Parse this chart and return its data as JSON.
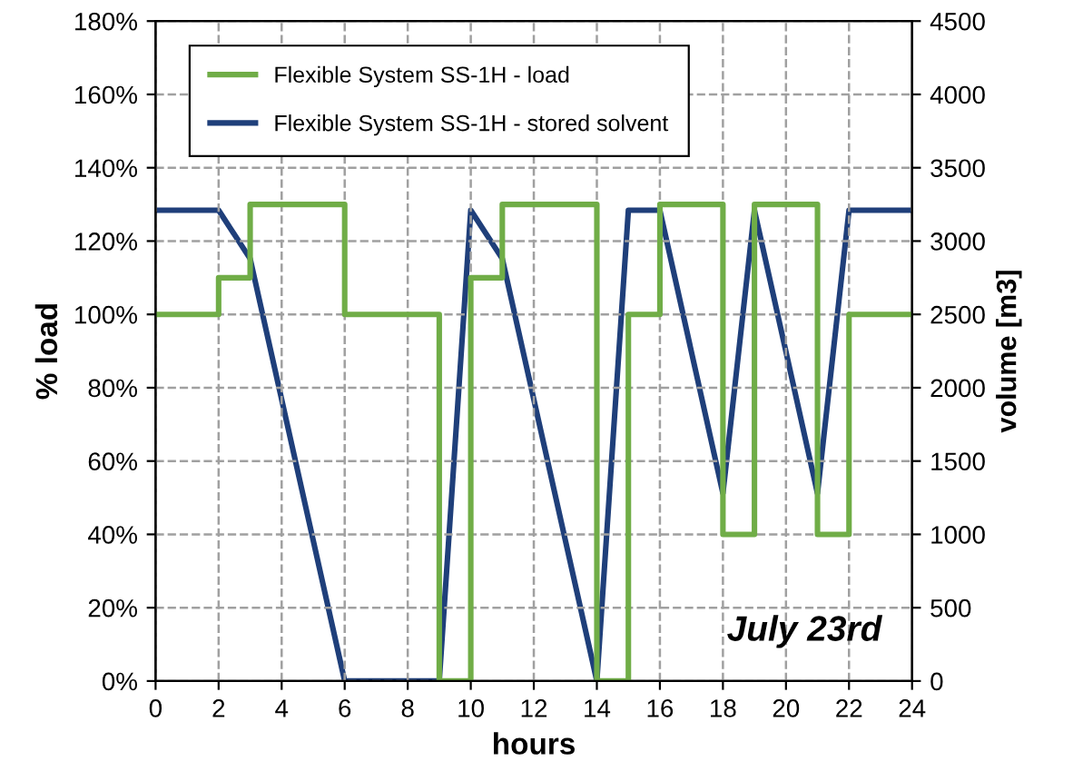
{
  "chart_data": {
    "type": "line",
    "xlabel": "hours",
    "ylabel": "% load",
    "y2label": "volume [m3]",
    "xlim": [
      0,
      24
    ],
    "xticks": [
      0,
      2,
      4,
      6,
      8,
      10,
      12,
      14,
      16,
      18,
      20,
      22,
      24
    ],
    "ylim": [
      0,
      180
    ],
    "yticks": [
      {
        "value": 0,
        "label": "0%"
      },
      {
        "value": 20,
        "label": "20%"
      },
      {
        "value": 40,
        "label": "40%"
      },
      {
        "value": 60,
        "label": "60%"
      },
      {
        "value": 80,
        "label": "80%"
      },
      {
        "value": 100,
        "label": "100%"
      },
      {
        "value": 120,
        "label": "120%"
      },
      {
        "value": 140,
        "label": "140%"
      },
      {
        "value": 160,
        "label": "160%"
      },
      {
        "value": 180,
        "label": "180%"
      }
    ],
    "y2lim": [
      0,
      4500
    ],
    "y2ticks": [
      0,
      500,
      1000,
      1500,
      2000,
      2500,
      3000,
      3500,
      4000,
      4500
    ],
    "grid": true,
    "legend": "top left",
    "marker": "none",
    "line_style": "solid",
    "annotations": [
      "July 23rd"
    ],
    "series": [
      {
        "name": "Flexible System SS-1H - load",
        "type": "step",
        "color": "#70ad47",
        "x": [
          0,
          2,
          3,
          6,
          9,
          10,
          11,
          14,
          15,
          16,
          18,
          19,
          21,
          22,
          24
        ],
        "values": [
          100,
          110,
          130,
          100,
          0,
          110,
          130,
          0,
          100,
          130,
          40,
          130,
          40,
          100,
          100
        ]
      },
      {
        "name": "Flexible System SS-1H - stored solvent",
        "axis": "y2",
        "color": "#1f3f7a",
        "x": [
          0,
          2,
          3,
          6,
          9,
          10,
          11,
          14,
          15,
          16,
          18,
          19,
          21,
          22,
          24
        ],
        "values": [
          3210,
          3210,
          2880,
          0,
          0,
          3210,
          2880,
          0,
          3210,
          3210,
          1280,
          3210,
          1280,
          3210,
          3210
        ]
      }
    ]
  }
}
